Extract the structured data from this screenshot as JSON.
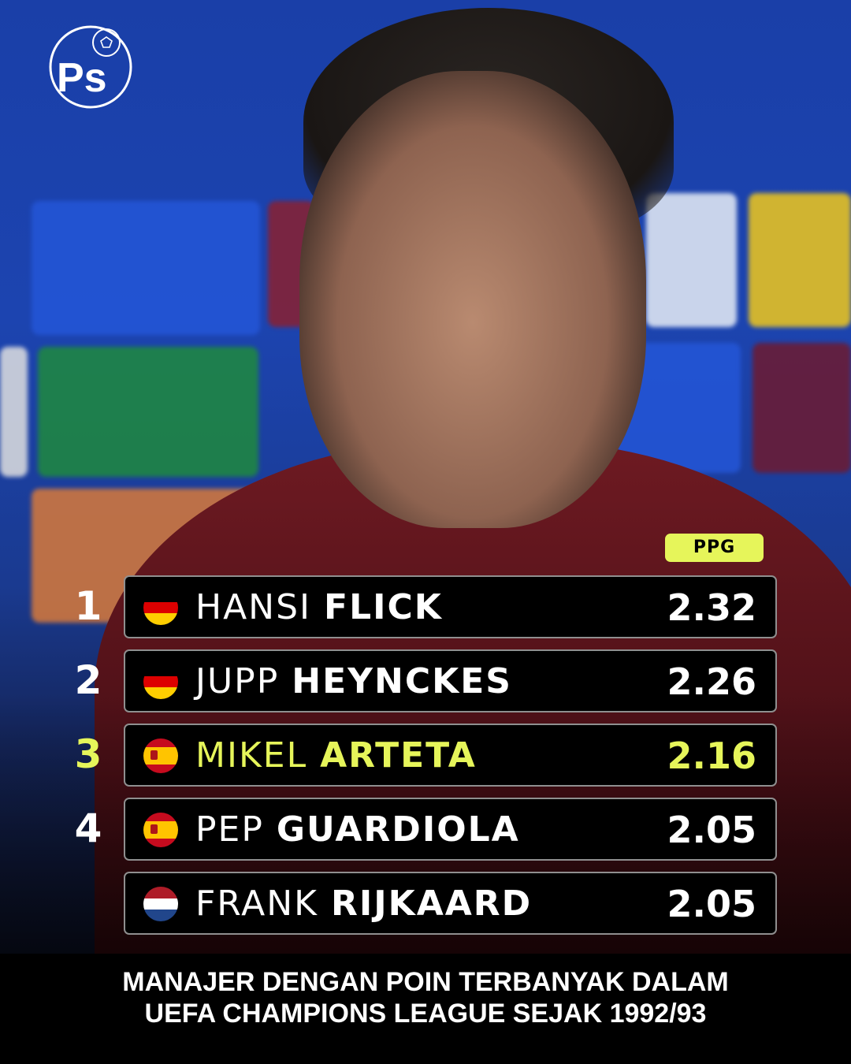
{
  "brand": {
    "logo_text": "Ps",
    "logo_icon": "football-icon"
  },
  "header": {
    "column_label": "PPG"
  },
  "colors": {
    "highlight": "#e6f55a",
    "row_bg": "#000000",
    "background": "#1c44b0"
  },
  "rows": [
    {
      "rank": "1",
      "first": "HANSI",
      "last": "FLICK",
      "value": "2.32",
      "flag": "germany-flag-icon",
      "highlight": false
    },
    {
      "rank": "2",
      "first": "JUPP",
      "last": "HEYNCKES",
      "value": "2.26",
      "flag": "germany-flag-icon",
      "highlight": false
    },
    {
      "rank": "3",
      "first": "MIKEL",
      "last": "ARTETA",
      "value": "2.16",
      "flag": "spain-flag-icon",
      "highlight": true
    },
    {
      "rank": "4",
      "first": "PEP",
      "last": "GUARDIOLA",
      "value": "2.05",
      "flag": "spain-flag-icon",
      "highlight": false
    },
    {
      "rank": "",
      "first": "FRANK",
      "last": "RIJKAARD",
      "value": "2.05",
      "flag": "netherlands-flag-icon",
      "highlight": false
    }
  ],
  "caption": {
    "line1": "MANAJER DENGAN POIN TERBANYAK DALAM",
    "line2": "UEFA CHAMPIONS LEAGUE SEJAK 1992/93"
  }
}
